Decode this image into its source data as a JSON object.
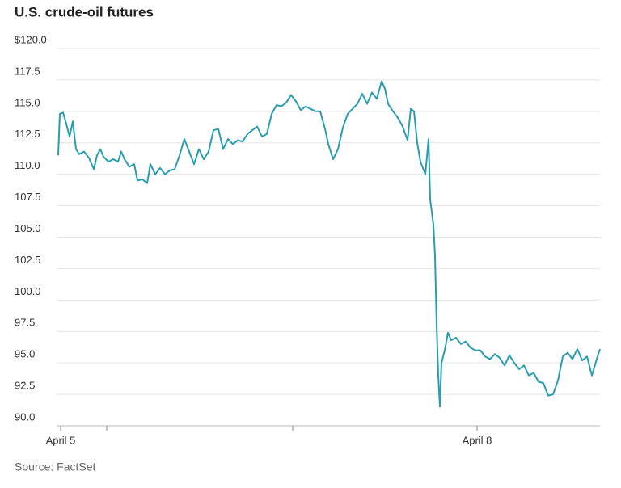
{
  "chart_data": {
    "type": "line",
    "title": "U.S. crude-oil futures",
    "source": "Source: FactSet",
    "color": "#2a9db0",
    "grid": true,
    "x": [
      0,
      2,
      6,
      10,
      14,
      18,
      22,
      26,
      32,
      38,
      44,
      48,
      52,
      56,
      62,
      68,
      74,
      78,
      82,
      88,
      94,
      98,
      104,
      110,
      114,
      120,
      126,
      132,
      138,
      144,
      150,
      156,
      162,
      168,
      174,
      180,
      186,
      192,
      198,
      204,
      210,
      216,
      222,
      228,
      234,
      240,
      246,
      252,
      258,
      264,
      270,
      276,
      282,
      288,
      294,
      300,
      306,
      312,
      318,
      324,
      330,
      334,
      340,
      346,
      352,
      358,
      364,
      370,
      376,
      382,
      388,
      394,
      400,
      404,
      408,
      414,
      420,
      426,
      432,
      436,
      440,
      444,
      448,
      454,
      458,
      460,
      464,
      466,
      468,
      470,
      472,
      474,
      478,
      482,
      486,
      492,
      498,
      504,
      510,
      516,
      522,
      528,
      534,
      540,
      546,
      552,
      558,
      564,
      570,
      576,
      582,
      588,
      594,
      600,
      606,
      612,
      618,
      624,
      630,
      636,
      642,
      648,
      654,
      660,
      666,
      670
    ],
    "values": [
      111.5,
      114.8,
      114.9,
      114.0,
      113.0,
      114.2,
      112.0,
      111.6,
      111.8,
      111.3,
      110.4,
      111.5,
      112.0,
      111.4,
      111.0,
      111.2,
      111.0,
      111.8,
      111.2,
      110.6,
      110.8,
      109.5,
      109.6,
      109.3,
      110.8,
      110.0,
      110.5,
      110.0,
      110.3,
      110.4,
      111.5,
      112.8,
      111.8,
      110.8,
      112.0,
      111.2,
      111.8,
      113.5,
      113.6,
      112.0,
      112.8,
      112.4,
      112.7,
      112.6,
      113.2,
      113.5,
      113.8,
      113.0,
      113.2,
      114.8,
      115.5,
      115.4,
      115.7,
      116.3,
      115.8,
      115.1,
      115.4,
      115.2,
      115.0,
      115.0,
      113.6,
      112.4,
      111.2,
      112.0,
      113.7,
      114.8,
      115.2,
      115.6,
      116.4,
      115.6,
      116.5,
      116.0,
      117.4,
      116.8,
      115.6,
      115.0,
      114.5,
      113.8,
      112.7,
      115.2,
      115.0,
      112.5,
      111.0,
      110.0,
      112.8,
      108.0,
      106.0,
      103.5,
      98.0,
      94.0,
      91.5,
      95.0,
      96.0,
      97.4,
      96.8,
      97.0,
      96.5,
      96.7,
      96.2,
      96.0,
      96.0,
      95.5,
      95.3,
      95.7,
      95.4,
      94.8,
      95.6,
      95.0,
      94.5,
      94.8,
      94.0,
      94.2,
      93.5,
      93.4,
      92.4,
      92.5,
      93.6,
      95.5,
      95.8,
      95.3,
      96.1,
      95.2,
      95.5,
      94.0,
      95.3,
      96.1
    ],
    "xlim": [
      0,
      670
    ],
    "xticks": [
      {
        "value": 3,
        "label": "April 5"
      },
      {
        "value": 60,
        "label": null
      },
      {
        "value": 290,
        "label": null
      },
      {
        "value": 518,
        "label": "April 8"
      }
    ],
    "ylim": [
      90,
      120
    ],
    "yticks": [
      {
        "value": 120,
        "label": "$120.0"
      },
      {
        "value": 117.5,
        "label": "117.5"
      },
      {
        "value": 115,
        "label": "115.0"
      },
      {
        "value": 112.5,
        "label": "112.5"
      },
      {
        "value": 110,
        "label": "110.0"
      },
      {
        "value": 107.5,
        "label": "107.5"
      },
      {
        "value": 105,
        "label": "105.0"
      },
      {
        "value": 102.5,
        "label": "102.5"
      },
      {
        "value": 100,
        "label": "100.0"
      },
      {
        "value": 97.5,
        "label": "97.5"
      },
      {
        "value": 95,
        "label": "95.0"
      },
      {
        "value": 92.5,
        "label": "92.5"
      },
      {
        "value": 90,
        "label": "90.0"
      }
    ]
  }
}
